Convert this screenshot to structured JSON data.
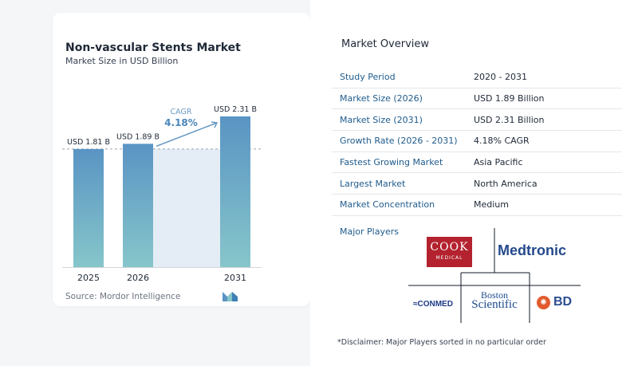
{
  "chart_card": {
    "title": "Non-vascular Stents Market",
    "subtitle": "Market Size in USD Billion",
    "source": "Source:  Mordor Intelligence"
  },
  "chart_data": {
    "type": "bar",
    "title": "Non-vascular Stents Market",
    "subtitle": "Market Size in USD Billion",
    "categories": [
      "2025",
      "2026",
      "2031"
    ],
    "values": [
      1.81,
      1.89,
      2.31
    ],
    "value_labels": [
      "USD 1.81 B",
      "USD 1.89 B",
      "USD 2.31 B"
    ],
    "cagr_label": "CAGR",
    "cagr_value": "4.18%",
    "ylim": [
      0,
      2.31
    ],
    "bar_color_top": "#5a94c4",
    "bar_color_bottom": "#86c6ca",
    "highlight_color": "#e4edf5",
    "grid": false
  },
  "overview": {
    "title": "Market Overview",
    "rows": [
      {
        "key": "Study Period",
        "value": "2020 - 2031"
      },
      {
        "key": "Market Size (2026)",
        "value": "USD 1.89 Billion"
      },
      {
        "key": "Market Size (2031)",
        "value": "USD 2.31 Billion"
      },
      {
        "key": "Growth Rate (2026 - 2031)",
        "value": "4.18% CAGR"
      },
      {
        "key": "Fastest Growing Market",
        "value": "Asia Pacific"
      },
      {
        "key": "Largest Market",
        "value": "North America"
      },
      {
        "key": "Market Concentration",
        "value": "Medium"
      }
    ]
  },
  "players": {
    "title": "Major Players",
    "cook": "COOK",
    "cook_sub": "MEDICAL",
    "medtronic": "Medtronic",
    "conmed": "≈CONMED",
    "boston_1": "Boston",
    "boston_2": "Scientific",
    "bd": "BD"
  },
  "disclaimer": "*Disclaimer: Major Players sorted in no particular order",
  "colors": {
    "accent_blue": "#1e5b8c",
    "cook_red": "#b3222e",
    "medtronic_blue": "#24498c"
  }
}
